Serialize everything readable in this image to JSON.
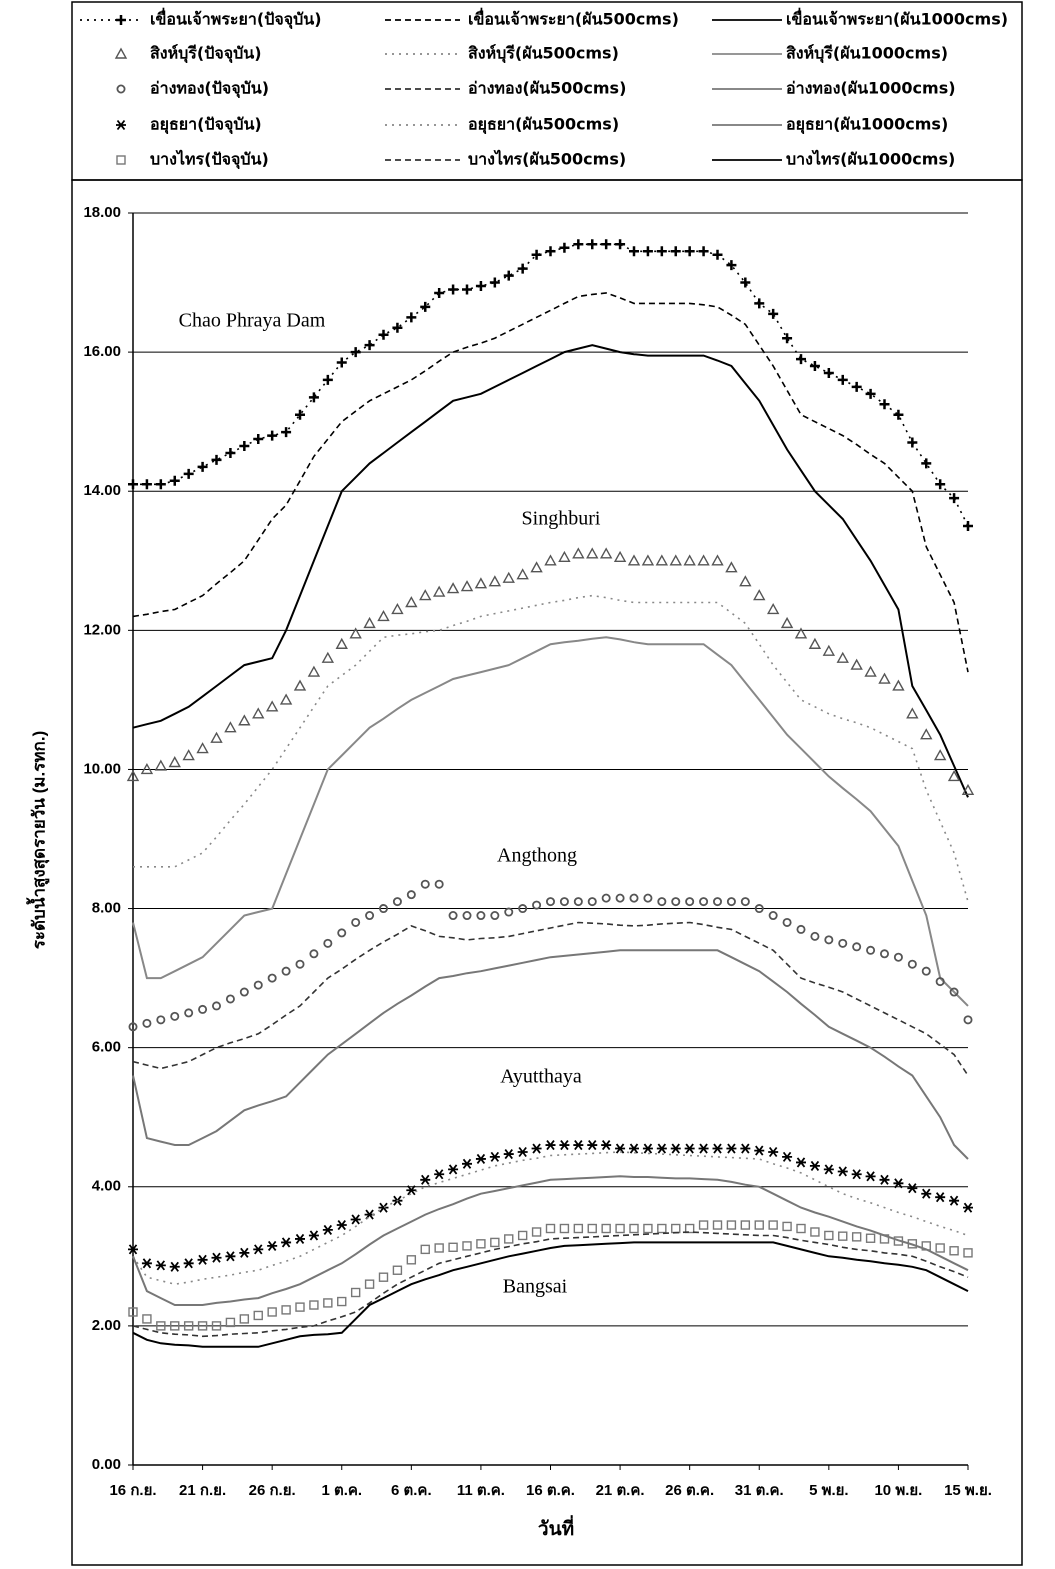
{
  "chart_data": {
    "type": "line",
    "y_label": "ระดับน้ำสูงสุดรายวัน (ม.รทก.)",
    "x_label": "วันที่",
    "annotations": [
      "Chao Phraya Dam",
      "Singhburi",
      "Angthong",
      "Ayutthaya",
      "Bangsai"
    ],
    "ylim": [
      0,
      18
    ],
    "yticks": [
      {
        "value": 0,
        "label": "0.00"
      },
      {
        "value": 2,
        "label": "2.00"
      },
      {
        "value": 4,
        "label": "4.00"
      },
      {
        "value": 6,
        "label": "6.00"
      },
      {
        "value": 8,
        "label": "8.00"
      },
      {
        "value": 10,
        "label": "10.00"
      },
      {
        "value": 12,
        "label": "12.00"
      },
      {
        "value": 14,
        "label": "14.00"
      },
      {
        "value": 16,
        "label": "16.00"
      },
      {
        "value": 18,
        "label": "18.00"
      }
    ],
    "grid": true,
    "categories": [
      "16 ก.ย.",
      null,
      null,
      null,
      null,
      "21 ก.ย.",
      null,
      null,
      null,
      null,
      "26 ก.ย.",
      null,
      null,
      null,
      null,
      "1 ต.ค.",
      null,
      null,
      null,
      null,
      "6 ต.ค.",
      null,
      null,
      null,
      null,
      "11 ต.ค.",
      null,
      null,
      null,
      null,
      "16 ต.ค.",
      null,
      null,
      null,
      null,
      "21 ต.ค.",
      null,
      null,
      null,
      null,
      "26 ต.ค.",
      null,
      null,
      null,
      null,
      "31 ต.ค.",
      null,
      null,
      null,
      null,
      "5 พ.ย.",
      null,
      null,
      null,
      null,
      "10 พ.ย.",
      null,
      null,
      null,
      null,
      "15 พ.ย."
    ],
    "series": [
      {
        "name": "เขื่อนเจ้าพระยา(ปัจจุบัน)",
        "color": "#000000",
        "dash": "dotted",
        "marker": "plus",
        "values": [
          14.1,
          14.1,
          14.1,
          14.15,
          14.25,
          14.35,
          14.45,
          14.55,
          14.65,
          14.75,
          14.8,
          14.85,
          15.1,
          15.35,
          15.6,
          15.85,
          16.0,
          16.1,
          16.25,
          16.35,
          16.5,
          16.65,
          16.85,
          16.9,
          16.9,
          16.95,
          17.0,
          17.1,
          17.2,
          17.4,
          17.45,
          17.5,
          17.55,
          17.55,
          17.55,
          17.55,
          17.45,
          17.45,
          17.45,
          17.45,
          17.45,
          17.45,
          17.4,
          17.25,
          17.0,
          16.7,
          16.55,
          16.2,
          15.9,
          15.8,
          15.7,
          15.6,
          15.5,
          15.4,
          15.25,
          15.1,
          14.7,
          14.4,
          14.1,
          13.9,
          13.5
        ]
      },
      {
        "name": "เขื่อนเจ้าพระยา(ผัน500cms)",
        "color": "#000000",
        "dash": "dashed",
        "marker": "none",
        "values": [
          12.2,
          12.23,
          12.27,
          12.3,
          12.4,
          12.5,
          12.67,
          12.83,
          13.0,
          13.3,
          13.6,
          13.8,
          14.15,
          14.5,
          14.75,
          15.0,
          15.15,
          15.3,
          15.4,
          15.5,
          15.6,
          15.73,
          15.87,
          16.0,
          16.07,
          16.13,
          16.2,
          16.3,
          16.4,
          16.5,
          16.6,
          16.7,
          16.8,
          16.83,
          16.85,
          16.78,
          16.7,
          16.7,
          16.7,
          16.7,
          16.7,
          16.68,
          16.65,
          16.53,
          16.4,
          16.1,
          15.8,
          15.45,
          15.1,
          15.0,
          14.9,
          14.8,
          14.67,
          14.53,
          14.4,
          14.2,
          14.0,
          13.2,
          12.8,
          12.4,
          11.4
        ]
      },
      {
        "name": "เขื่อนเจ้าพระยา(ผัน1000cms)",
        "color": "#000000",
        "dash": "solid",
        "marker": "none",
        "values": [
          10.6,
          10.65,
          10.7,
          10.8,
          10.9,
          11.05,
          11.2,
          11.35,
          11.5,
          11.55,
          11.6,
          12.0,
          12.5,
          13.0,
          13.5,
          14.0,
          14.2,
          14.4,
          14.55,
          14.7,
          14.85,
          15.0,
          15.15,
          15.3,
          15.35,
          15.4,
          15.5,
          15.6,
          15.7,
          15.8,
          15.9,
          16.0,
          16.05,
          16.1,
          16.05,
          16.0,
          15.97,
          15.95,
          15.95,
          15.95,
          15.95,
          15.95,
          15.88,
          15.8,
          15.55,
          15.3,
          14.95,
          14.6,
          14.3,
          14.0,
          13.8,
          13.6,
          13.3,
          13.0,
          12.65,
          12.3,
          11.2,
          10.85,
          10.5,
          10.05,
          9.6
        ]
      },
      {
        "name": "สิงห์บุรี(ปัจจุบัน)",
        "color": "#555555",
        "dash": "none",
        "marker": "triangle",
        "values": [
          9.9,
          10.0,
          10.05,
          10.1,
          10.2,
          10.3,
          10.45,
          10.6,
          10.7,
          10.8,
          10.9,
          11.0,
          11.2,
          11.4,
          11.6,
          11.8,
          11.95,
          12.1,
          12.2,
          12.3,
          12.4,
          12.5,
          12.55,
          12.6,
          12.63,
          12.67,
          12.7,
          12.75,
          12.8,
          12.9,
          13.0,
          13.05,
          13.1,
          13.1,
          13.1,
          13.05,
          13.0,
          13.0,
          13.0,
          13.0,
          13.0,
          13.0,
          13.0,
          12.9,
          12.7,
          12.5,
          12.3,
          12.1,
          11.95,
          11.8,
          11.7,
          11.6,
          11.5,
          11.4,
          11.3,
          11.2,
          10.8,
          10.5,
          10.2,
          9.9,
          9.7
        ]
      },
      {
        "name": "สิงห์บุรี(ผัน500cms)",
        "color": "#888888",
        "dash": "dotted",
        "marker": "none",
        "values": [
          8.6,
          8.6,
          8.6,
          8.6,
          8.7,
          8.8,
          9.03,
          9.27,
          9.5,
          9.75,
          10.0,
          10.3,
          10.6,
          10.9,
          11.2,
          11.35,
          11.5,
          11.7,
          11.9,
          11.93,
          11.95,
          11.98,
          12.0,
          12.07,
          12.13,
          12.2,
          12.24,
          12.28,
          12.32,
          12.36,
          12.4,
          12.43,
          12.47,
          12.5,
          12.47,
          12.43,
          12.4,
          12.4,
          12.4,
          12.4,
          12.4,
          12.4,
          12.4,
          12.25,
          12.1,
          11.8,
          11.5,
          11.25,
          11.0,
          10.9,
          10.8,
          10.73,
          10.67,
          10.6,
          10.5,
          10.4,
          10.3,
          9.7,
          9.25,
          8.8,
          8.1
        ]
      },
      {
        "name": "สิงห์บุรี(ผัน1000cms)",
        "color": "#888888",
        "dash": "solid",
        "marker": "none",
        "values": [
          7.8,
          7.0,
          7.0,
          7.1,
          7.2,
          7.3,
          7.5,
          7.7,
          7.9,
          7.95,
          8.0,
          8.5,
          9.0,
          9.5,
          10.0,
          10.2,
          10.4,
          10.6,
          10.73,
          10.87,
          11.0,
          11.1,
          11.2,
          11.3,
          11.35,
          11.4,
          11.45,
          11.5,
          11.6,
          11.7,
          11.8,
          11.83,
          11.85,
          11.88,
          11.9,
          11.87,
          11.83,
          11.8,
          11.8,
          11.8,
          11.8,
          11.8,
          11.65,
          11.5,
          11.25,
          11.0,
          10.75,
          10.5,
          10.3,
          10.1,
          9.9,
          9.73,
          9.57,
          9.4,
          9.15,
          8.9,
          8.4,
          7.9,
          7.0,
          6.8,
          6.6
        ]
      },
      {
        "name": "อ่างทอง(ปัจจุบัน)",
        "color": "#555555",
        "dash": "none",
        "marker": "circle",
        "values": [
          6.3,
          6.35,
          6.4,
          6.45,
          6.5,
          6.55,
          6.6,
          6.7,
          6.8,
          6.9,
          7.0,
          7.1,
          7.2,
          7.35,
          7.5,
          7.65,
          7.8,
          7.9,
          8.0,
          8.1,
          8.2,
          8.35,
          8.35,
          7.9,
          7.9,
          7.9,
          7.9,
          7.95,
          8.0,
          8.05,
          8.1,
          8.1,
          8.1,
          8.1,
          8.15,
          8.15,
          8.15,
          8.15,
          8.1,
          8.1,
          8.1,
          8.1,
          8.1,
          8.1,
          8.1,
          8.0,
          7.9,
          7.8,
          7.7,
          7.6,
          7.55,
          7.5,
          7.45,
          7.4,
          7.35,
          7.3,
          7.2,
          7.1,
          6.95,
          6.8,
          6.4
        ]
      },
      {
        "name": "อ่างทอง(ผัน500cms)",
        "color": "#333333",
        "dash": "dashed",
        "marker": "none",
        "values": [
          5.8,
          5.75,
          5.7,
          5.75,
          5.8,
          5.9,
          6.0,
          6.07,
          6.13,
          6.2,
          6.33,
          6.47,
          6.6,
          6.8,
          7.0,
          7.13,
          7.27,
          7.4,
          7.52,
          7.63,
          7.75,
          7.68,
          7.6,
          7.58,
          7.55,
          7.57,
          7.58,
          7.6,
          7.64,
          7.68,
          7.72,
          7.76,
          7.8,
          7.79,
          7.78,
          7.76,
          7.75,
          7.76,
          7.78,
          7.79,
          7.8,
          7.77,
          7.73,
          7.7,
          7.6,
          7.5,
          7.4,
          7.2,
          7.0,
          6.93,
          6.87,
          6.8,
          6.7,
          6.6,
          6.5,
          6.4,
          6.3,
          6.2,
          6.05,
          5.9,
          5.6
        ]
      },
      {
        "name": "อ่างทอง(ผัน1000cms)",
        "color": "#777777",
        "dash": "solid",
        "marker": "none",
        "values": [
          5.6,
          4.7,
          4.65,
          4.6,
          4.6,
          4.7,
          4.8,
          4.95,
          5.1,
          5.17,
          5.23,
          5.3,
          5.5,
          5.7,
          5.9,
          6.05,
          6.2,
          6.35,
          6.5,
          6.63,
          6.75,
          6.88,
          7.0,
          7.03,
          7.07,
          7.1,
          7.14,
          7.18,
          7.22,
          7.26,
          7.3,
          7.32,
          7.34,
          7.36,
          7.38,
          7.4,
          7.4,
          7.4,
          7.4,
          7.4,
          7.4,
          7.4,
          7.4,
          7.3,
          7.2,
          7.1,
          6.95,
          6.8,
          6.63,
          6.47,
          6.3,
          6.2,
          6.1,
          6.0,
          5.87,
          5.73,
          5.6,
          5.3,
          5.0,
          4.6,
          4.4
        ]
      },
      {
        "name": "อยุธยา(ปัจจุบัน)",
        "color": "#000000",
        "dash": "none",
        "marker": "asterisk",
        "values": [
          3.1,
          2.9,
          2.87,
          2.85,
          2.9,
          2.95,
          2.98,
          3.0,
          3.05,
          3.1,
          3.15,
          3.2,
          3.25,
          3.3,
          3.38,
          3.45,
          3.53,
          3.6,
          3.7,
          3.8,
          3.95,
          4.1,
          4.18,
          4.25,
          4.33,
          4.4,
          4.43,
          4.47,
          4.5,
          4.55,
          4.6,
          4.6,
          4.6,
          4.6,
          4.6,
          4.55,
          4.55,
          4.55,
          4.55,
          4.55,
          4.55,
          4.55,
          4.55,
          4.55,
          4.55,
          4.52,
          4.5,
          4.43,
          4.35,
          4.3,
          4.25,
          4.22,
          4.18,
          4.15,
          4.1,
          4.05,
          3.98,
          3.9,
          3.85,
          3.8,
          3.7
        ]
      },
      {
        "name": "อยุธยา(ผัน500cms)",
        "color": "#888888",
        "dash": "dotted",
        "marker": "none",
        "values": [
          3.0,
          2.7,
          2.65,
          2.6,
          2.63,
          2.67,
          2.7,
          2.73,
          2.77,
          2.8,
          2.87,
          2.93,
          3.0,
          3.1,
          3.2,
          3.3,
          3.43,
          3.57,
          3.7,
          3.8,
          3.9,
          4.0,
          4.06,
          4.12,
          4.18,
          4.24,
          4.3,
          4.34,
          4.38,
          4.41,
          4.45,
          4.46,
          4.47,
          4.48,
          4.49,
          4.5,
          4.49,
          4.48,
          4.47,
          4.46,
          4.45,
          4.44,
          4.43,
          4.42,
          4.41,
          4.4,
          4.33,
          4.27,
          4.2,
          4.1,
          4.0,
          3.9,
          3.83,
          3.77,
          3.7,
          3.63,
          3.57,
          3.5,
          3.43,
          3.37,
          3.3
        ]
      },
      {
        "name": "อยุธยา(ผัน1000cms)",
        "color": "#777777",
        "dash": "solid",
        "marker": "none",
        "values": [
          3.0,
          2.5,
          2.4,
          2.3,
          2.3,
          2.3,
          2.33,
          2.35,
          2.38,
          2.4,
          2.47,
          2.53,
          2.6,
          2.7,
          2.8,
          2.9,
          3.03,
          3.17,
          3.3,
          3.4,
          3.5,
          3.6,
          3.68,
          3.75,
          3.83,
          3.9,
          3.94,
          3.98,
          4.02,
          4.06,
          4.1,
          4.11,
          4.12,
          4.13,
          4.14,
          4.15,
          4.14,
          4.14,
          4.13,
          4.12,
          4.12,
          4.11,
          4.1,
          4.07,
          4.03,
          4.0,
          3.9,
          3.8,
          3.7,
          3.63,
          3.57,
          3.5,
          3.43,
          3.37,
          3.3,
          3.23,
          3.17,
          3.1,
          3.0,
          2.9,
          2.8
        ]
      },
      {
        "name": "บางไทร(ปัจจุบัน)",
        "color": "#777777",
        "dash": "none",
        "marker": "square",
        "values": [
          2.2,
          2.1,
          2.0,
          2.0,
          2.0,
          2.0,
          2.0,
          2.05,
          2.1,
          2.15,
          2.2,
          2.23,
          2.27,
          2.3,
          2.33,
          2.35,
          2.48,
          2.6,
          2.7,
          2.8,
          2.95,
          3.1,
          3.12,
          3.13,
          3.15,
          3.18,
          3.2,
          3.25,
          3.3,
          3.35,
          3.4,
          3.4,
          3.4,
          3.4,
          3.4,
          3.4,
          3.4,
          3.4,
          3.4,
          3.4,
          3.4,
          3.45,
          3.45,
          3.45,
          3.45,
          3.45,
          3.45,
          3.43,
          3.4,
          3.35,
          3.3,
          3.29,
          3.28,
          3.26,
          3.25,
          3.22,
          3.18,
          3.15,
          3.12,
          3.08,
          3.05
        ]
      },
      {
        "name": "บางไทร(ผัน500cms)",
        "color": "#333333",
        "dash": "dashed",
        "marker": "none",
        "values": [
          2.0,
          1.95,
          1.9,
          1.88,
          1.87,
          1.85,
          1.86,
          1.88,
          1.89,
          1.9,
          1.93,
          1.95,
          1.98,
          2.0,
          2.07,
          2.13,
          2.2,
          2.33,
          2.47,
          2.6,
          2.7,
          2.8,
          2.9,
          2.95,
          3.0,
          3.05,
          3.1,
          3.14,
          3.18,
          3.21,
          3.25,
          3.26,
          3.27,
          3.28,
          3.29,
          3.3,
          3.31,
          3.32,
          3.33,
          3.34,
          3.35,
          3.34,
          3.33,
          3.32,
          3.31,
          3.3,
          3.3,
          3.27,
          3.23,
          3.2,
          3.17,
          3.13,
          3.1,
          3.08,
          3.05,
          3.03,
          3.0,
          2.93,
          2.85,
          2.78,
          2.7
        ]
      },
      {
        "name": "บางไทร(ผัน1000cms)",
        "color": "#000000",
        "dash": "solid",
        "marker": "none",
        "values": [
          1.9,
          1.8,
          1.75,
          1.73,
          1.72,
          1.7,
          1.7,
          1.7,
          1.7,
          1.7,
          1.75,
          1.8,
          1.85,
          1.87,
          1.88,
          1.9,
          2.1,
          2.3,
          2.4,
          2.5,
          2.6,
          2.67,
          2.73,
          2.8,
          2.85,
          2.9,
          2.95,
          3.0,
          3.04,
          3.08,
          3.12,
          3.15,
          3.16,
          3.17,
          3.18,
          3.19,
          3.2,
          3.2,
          3.2,
          3.2,
          3.2,
          3.2,
          3.2,
          3.2,
          3.2,
          3.2,
          3.2,
          3.15,
          3.1,
          3.05,
          3.0,
          2.98,
          2.95,
          2.93,
          2.9,
          2.88,
          2.85,
          2.8,
          2.7,
          2.6,
          2.5
        ]
      }
    ]
  }
}
